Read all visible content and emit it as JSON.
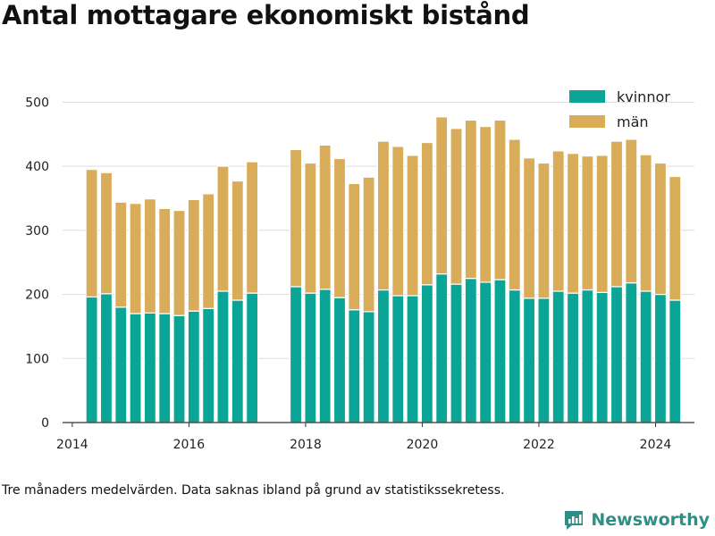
{
  "title": "Antal mottagare ekonomiskt bistånd",
  "footnote": "Tre månaders medelvärden. Data saknas ibland på grund av statistikssekretess.",
  "brand": {
    "name": "Newsworthy",
    "icon": "newsworthy-logo-icon",
    "color": "#2f8f86"
  },
  "colors": {
    "kvinnor": "#0aa596",
    "män": "#d8ac58",
    "grid": "#dddddd",
    "axis": "#333333"
  },
  "chart_data": {
    "type": "bar",
    "stacked": true,
    "ylim": [
      0,
      520
    ],
    "yticks": [
      0,
      100,
      200,
      300,
      400,
      500
    ],
    "xlim": [
      "2013-11",
      "2024-09"
    ],
    "xticks": [
      "2014",
      "2016",
      "2018",
      "2020",
      "2022",
      "2024"
    ],
    "grid": true,
    "legend": "top-right",
    "x": [
      "2014-05",
      "2014-08",
      "2014-11",
      "2015-02",
      "2015-05",
      "2015-08",
      "2015-11",
      "2016-02",
      "2016-05",
      "2016-08",
      "2016-11",
      "2017-02",
      "2017-05",
      "2017-08",
      "2017-11",
      "2018-02",
      "2018-05",
      "2018-08",
      "2018-11",
      "2019-02",
      "2019-05",
      "2019-08",
      "2019-11",
      "2020-02",
      "2020-05",
      "2020-08",
      "2020-11",
      "2021-02",
      "2021-05",
      "2021-08",
      "2021-11",
      "2022-02",
      "2022-05",
      "2022-08",
      "2022-11",
      "2023-02",
      "2023-05",
      "2023-08",
      "2023-11",
      "2024-02",
      "2024-05",
      "2024-08"
    ],
    "series": [
      {
        "name": "kvinnor",
        "values": [
          196,
          201,
          180,
          170,
          171,
          170,
          167,
          174,
          178,
          205,
          191,
          202,
          null,
          null,
          212,
          202,
          208,
          195,
          176,
          173,
          207,
          198,
          198,
          215,
          232,
          216,
          225,
          219,
          223,
          207,
          194,
          194,
          205,
          202,
          207,
          203,
          212,
          218,
          205,
          200,
          191,
          null
        ]
      },
      {
        "name": "män",
        "values": [
          199,
          189,
          164,
          172,
          178,
          164,
          164,
          174,
          179,
          195,
          186,
          205,
          null,
          null,
          214,
          203,
          225,
          217,
          197,
          210,
          232,
          233,
          219,
          222,
          245,
          243,
          247,
          243,
          249,
          235,
          219,
          211,
          219,
          218,
          209,
          214,
          227,
          224,
          213,
          205,
          193,
          null
        ]
      }
    ]
  }
}
